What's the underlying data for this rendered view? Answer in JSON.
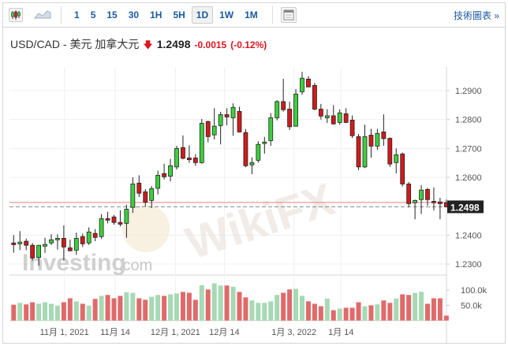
{
  "toolbar": {
    "chart_types": [
      {
        "icon": "candlestick-icon"
      },
      {
        "icon": "area-chart-icon"
      }
    ],
    "intervals": [
      "1",
      "5",
      "15",
      "30",
      "1H",
      "5H",
      "1D",
      "1W",
      "1M"
    ],
    "active_interval": "1D",
    "layout_icon": "layout-icon",
    "technical_link": "技術圖表 »"
  },
  "header": {
    "symbol": "USD/CAD - 美元 加拿大元",
    "direction_icon": "down-arrow-icon",
    "price": "1.2498",
    "change": "-0.0015",
    "change_pct": "(-0.12%)"
  },
  "chart_data": {
    "type": "candlestick",
    "price_axis": {
      "ticks": [
        "1.2900",
        "1.2800",
        "1.2700",
        "1.2600",
        "1.2400",
        "1.2300"
      ],
      "range": [
        1.227,
        1.3
      ]
    },
    "current_price_label": "1.2498",
    "current_price": 1.2498,
    "previous_close": 1.2513,
    "x_tick_labels": [
      "11月 1, 2021",
      "11月 14",
      "12月 1, 2021",
      "12月 14",
      "1月 3, 2022",
      "1月 14"
    ],
    "ohlc": [
      [
        1.2373,
        1.24,
        1.2339,
        1.2367
      ],
      [
        1.237,
        1.2414,
        1.2348,
        1.2376
      ],
      [
        1.2379,
        1.2388,
        1.2348,
        1.2365
      ],
      [
        1.2365,
        1.2373,
        1.2312,
        1.2321
      ],
      [
        1.2323,
        1.2366,
        1.2294,
        1.2365
      ],
      [
        1.2362,
        1.2391,
        1.2339,
        1.2368
      ],
      [
        1.2373,
        1.2403,
        1.2366,
        1.2384
      ],
      [
        1.2384,
        1.2403,
        1.235,
        1.2389
      ],
      [
        1.2389,
        1.2434,
        1.2312,
        1.2359
      ],
      [
        1.2356,
        1.2385,
        1.2343,
        1.2346
      ],
      [
        1.2348,
        1.2409,
        1.2332,
        1.2389
      ],
      [
        1.2395,
        1.2405,
        1.2359,
        1.237
      ],
      [
        1.2373,
        1.2427,
        1.2366,
        1.2411
      ],
      [
        1.2406,
        1.2421,
        1.2379,
        1.2392
      ],
      [
        1.2395,
        1.2473,
        1.2387,
        1.2457
      ],
      [
        1.2457,
        1.2481,
        1.2441,
        1.2452
      ],
      [
        1.2463,
        1.247,
        1.2436,
        1.2444
      ],
      [
        1.2444,
        1.2486,
        1.243,
        1.2438
      ],
      [
        1.2441,
        1.2505,
        1.2391,
        1.249
      ],
      [
        1.2496,
        1.26,
        1.2477,
        1.2577
      ],
      [
        1.258,
        1.2607,
        1.2532,
        1.2545
      ],
      [
        1.255,
        1.2559,
        1.25,
        1.2514
      ],
      [
        1.252,
        1.257,
        1.2494,
        1.2561
      ],
      [
        1.2562,
        1.2623,
        1.2541,
        1.2607
      ],
      [
        1.2613,
        1.2647,
        1.2593,
        1.2602
      ],
      [
        1.2604,
        1.2664,
        1.2586,
        1.264
      ],
      [
        1.2636,
        1.2709,
        1.2627,
        1.27
      ],
      [
        1.2703,
        1.2745,
        1.2662,
        1.2666
      ],
      [
        1.2667,
        1.2711,
        1.265,
        1.2661
      ],
      [
        1.2667,
        1.268,
        1.264,
        1.2651
      ],
      [
        1.2651,
        1.2802,
        1.2647,
        1.2787
      ],
      [
        1.2793,
        1.2796,
        1.2721,
        1.2741
      ],
      [
        1.2747,
        1.2839,
        1.2731,
        1.2777
      ],
      [
        1.2779,
        1.2827,
        1.2714,
        1.2817
      ],
      [
        1.2817,
        1.2839,
        1.278,
        1.2809
      ],
      [
        1.2806,
        1.2856,
        1.2744,
        1.2842
      ],
      [
        1.2828,
        1.2844,
        1.2755,
        1.2757
      ],
      [
        1.2755,
        1.2767,
        1.2635,
        1.264
      ],
      [
        1.2643,
        1.2669,
        1.2611,
        1.2651
      ],
      [
        1.2659,
        1.2725,
        1.2651,
        1.2714
      ],
      [
        1.2717,
        1.274,
        1.2682,
        1.2722
      ],
      [
        1.2727,
        1.2822,
        1.2709,
        1.2806
      ],
      [
        1.2806,
        1.2867,
        1.2797,
        1.2862
      ],
      [
        1.2862,
        1.2941,
        1.2827,
        1.2834
      ],
      [
        1.2836,
        1.2862,
        1.2764,
        1.2775
      ],
      [
        1.2777,
        1.2905,
        1.2775,
        1.2888
      ],
      [
        1.2896,
        1.2965,
        1.2886,
        1.2943
      ],
      [
        1.294,
        1.295,
        1.2911,
        1.2913
      ],
      [
        1.2918,
        1.2927,
        1.2832,
        1.2836
      ],
      [
        1.2836,
        1.2854,
        1.28,
        1.2812
      ],
      [
        1.2806,
        1.2836,
        1.2788,
        1.2813
      ],
      [
        1.2813,
        1.285,
        1.2782,
        1.2785
      ],
      [
        1.279,
        1.2835,
        1.2782,
        1.2823
      ],
      [
        1.282,
        1.2839,
        1.2788,
        1.279
      ],
      [
        1.2798,
        1.2814,
        1.2736,
        1.2744
      ],
      [
        1.2741,
        1.275,
        1.2625,
        1.2636
      ],
      [
        1.2636,
        1.2782,
        1.2632,
        1.2741
      ],
      [
        1.2746,
        1.2768,
        1.2668,
        1.2708
      ],
      [
        1.2708,
        1.2768,
        1.2695,
        1.2752
      ],
      [
        1.2757,
        1.2818,
        1.2709,
        1.2734
      ],
      [
        1.2735,
        1.2738,
        1.2636,
        1.2646
      ],
      [
        1.2651,
        1.27,
        1.2614,
        1.2678
      ],
      [
        1.2681,
        1.2686,
        1.2568,
        1.2577
      ],
      [
        1.2577,
        1.2584,
        1.2496,
        1.2509
      ],
      [
        1.2512,
        1.2523,
        1.2455,
        1.252
      ],
      [
        1.2523,
        1.2573,
        1.2473,
        1.2556
      ],
      [
        1.2558,
        1.2564,
        1.2502,
        1.2523
      ],
      [
        1.2517,
        1.2565,
        1.2486,
        1.2512
      ],
      [
        1.2515,
        1.2529,
        1.2455,
        1.2509
      ],
      [
        1.2512,
        1.2523,
        1.2496,
        1.2498
      ]
    ],
    "volume_axis": {
      "ticks": [
        "100.0k",
        "50.0k"
      ]
    },
    "volume_k": [
      52,
      58,
      53,
      60,
      55,
      60,
      55,
      49,
      60,
      73,
      63,
      55,
      49,
      71,
      81,
      84,
      73,
      81,
      93,
      91,
      73,
      68,
      78,
      84,
      81,
      86,
      89,
      94,
      91,
      68,
      116,
      102,
      122,
      115,
      115,
      111,
      94,
      76,
      66,
      58,
      58,
      63,
      84,
      91,
      102,
      104,
      81,
      63,
      55,
      47,
      72,
      34,
      39,
      42,
      42,
      60,
      47,
      50,
      53,
      66,
      58,
      72,
      86,
      84,
      91,
      94,
      55,
      73,
      73,
      16
    ],
    "colors": {
      "up": "#3cd03c",
      "down": "#d21a1a",
      "vol_up": "#a6d9b4",
      "vol_down": "#e06a6a",
      "prev_close_line": "#e88080",
      "current_line": "#888888"
    }
  },
  "watermarks": {
    "logo1": "Investing.com",
    "logo2": "WikiFX"
  }
}
